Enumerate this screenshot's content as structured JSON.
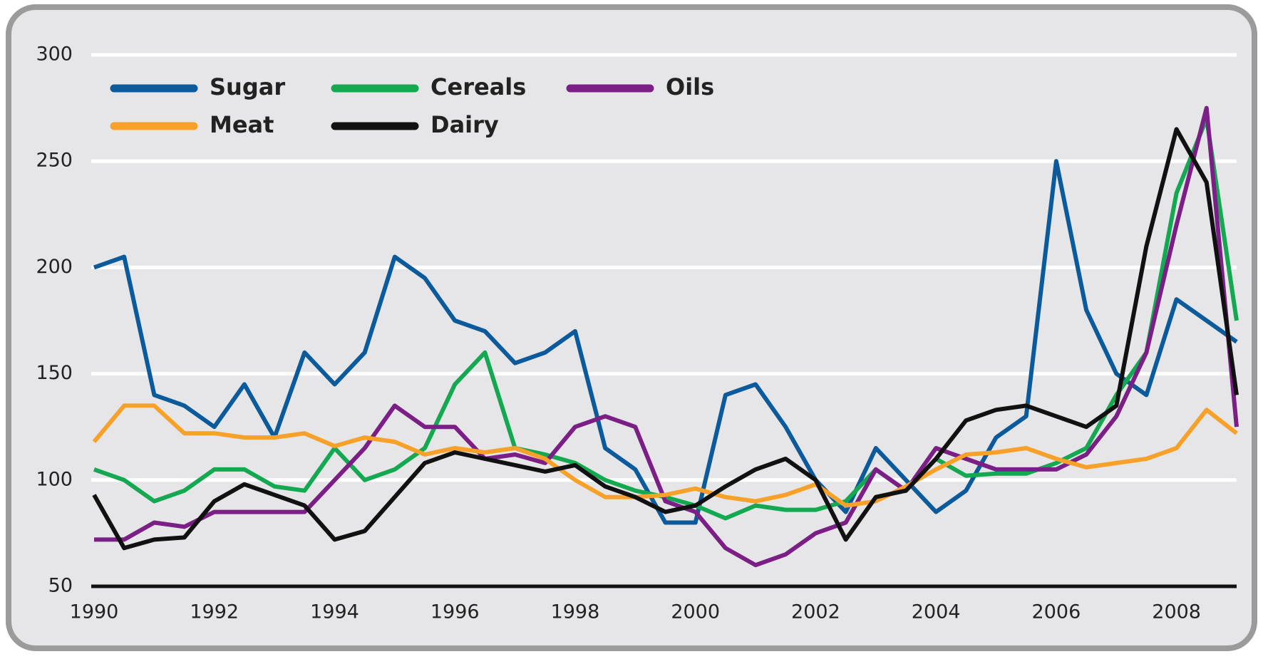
{
  "chart_data": {
    "type": "line",
    "x": [
      1990,
      1990.5,
      1991,
      1991.5,
      1992,
      1992.5,
      1993,
      1993.5,
      1994,
      1994.5,
      1995,
      1995.5,
      1996,
      1996.5,
      1997,
      1997.5,
      1998,
      1998.5,
      1999,
      1999.5,
      2000,
      2000.5,
      2001,
      2001.5,
      2002,
      2002.5,
      2003,
      2003.5,
      2004,
      2004.5,
      2005,
      2005.5,
      2006,
      2006.5,
      2007,
      2007.5,
      2008,
      2008.5,
      2009
    ],
    "series": [
      {
        "name": "Sugar",
        "color": "#0b5a9c",
        "values": [
          200,
          205,
          140,
          135,
          125,
          145,
          120,
          160,
          145,
          160,
          205,
          195,
          175,
          170,
          155,
          160,
          170,
          115,
          105,
          80,
          80,
          140,
          145,
          125,
          100,
          85,
          115,
          100,
          85,
          95,
          120,
          130,
          250,
          180,
          150,
          140,
          185,
          175,
          165
        ]
      },
      {
        "name": "Cereals",
        "color": "#14a850",
        "values": [
          105,
          100,
          90,
          95,
          105,
          105,
          97,
          95,
          115,
          100,
          105,
          115,
          145,
          160,
          115,
          112,
          108,
          100,
          95,
          92,
          88,
          82,
          88,
          86,
          86,
          90,
          105,
          95,
          110,
          102,
          103,
          103,
          108,
          115,
          140,
          160,
          235,
          270,
          175
        ]
      },
      {
        "name": "Oils",
        "color": "#7b1f86",
        "values": [
          72,
          72,
          80,
          78,
          85,
          85,
          85,
          85,
          100,
          115,
          135,
          125,
          125,
          110,
          112,
          108,
          125,
          130,
          125,
          90,
          85,
          68,
          60,
          65,
          75,
          80,
          105,
          95,
          115,
          110,
          105,
          105,
          105,
          112,
          130,
          160,
          220,
          275,
          125
        ]
      },
      {
        "name": "Meat",
        "color": "#f7a128",
        "values": [
          118,
          135,
          135,
          122,
          122,
          120,
          120,
          122,
          116,
          120,
          118,
          112,
          115,
          113,
          115,
          110,
          100,
          92,
          92,
          93,
          96,
          92,
          90,
          93,
          98,
          88,
          90,
          97,
          105,
          112,
          113,
          115,
          110,
          106,
          108,
          110,
          115,
          133,
          122
        ]
      },
      {
        "name": "Dairy",
        "color": "#111111",
        "values": [
          93,
          68,
          72,
          73,
          90,
          98,
          93,
          88,
          72,
          76,
          92,
          108,
          113,
          110,
          107,
          104,
          107,
          97,
          92,
          85,
          88,
          97,
          105,
          110,
          100,
          72,
          92,
          95,
          110,
          128,
          133,
          135,
          130,
          125,
          135,
          210,
          265,
          240,
          140
        ]
      }
    ],
    "xlim": [
      1990,
      2009
    ],
    "xticks": [
      1990,
      1992,
      1994,
      1996,
      1998,
      2000,
      2002,
      2004,
      2006,
      2008
    ],
    "ylim": [
      50,
      300
    ],
    "yticks": [
      50,
      100,
      150,
      200,
      250,
      300
    ],
    "grid": true
  }
}
